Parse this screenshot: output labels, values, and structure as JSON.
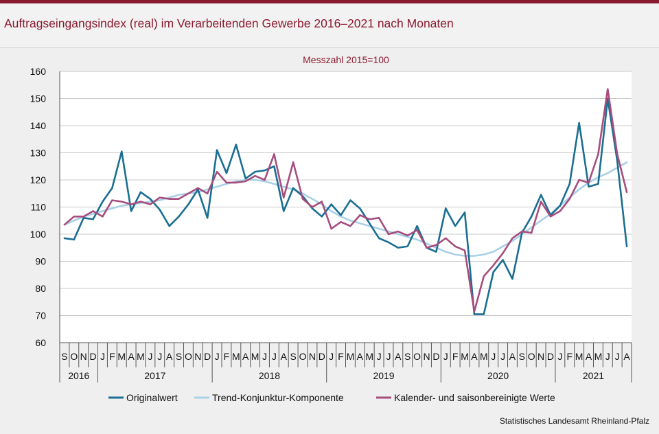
{
  "title": "Auftragseingangsindex (real) im Verarbeitenden Gewerbe 2016–2021 nach Monaten",
  "source": "Statistisches Landesamt  Rheinland-Pfalz",
  "colors": {
    "brand": "#8b1a2f",
    "original": "#1a6e91",
    "trend": "#a9d0e6",
    "seasonal": "#a64d7d"
  },
  "chart_data": {
    "type": "line",
    "subtitle": "Messzahl  2015=100",
    "ylim": [
      60,
      160
    ],
    "yticks": [
      60,
      70,
      80,
      90,
      100,
      110,
      120,
      130,
      140,
      150,
      160
    ],
    "month_labels": [
      "S",
      "O",
      "N",
      "D",
      "J",
      "F",
      "M",
      "A",
      "M",
      "J",
      "J",
      "A",
      "S",
      "O",
      "N",
      "D",
      "J",
      "F",
      "M",
      "A",
      "M",
      "J",
      "J",
      "A",
      "S",
      "O",
      "N",
      "D",
      "J",
      "F",
      "M",
      "A",
      "M",
      "J",
      "J",
      "A",
      "S",
      "O",
      "N",
      "D",
      "J",
      "F",
      "M",
      "A",
      "M",
      "J",
      "J",
      "A",
      "S",
      "O",
      "N",
      "D",
      "J",
      "F",
      "M",
      "A",
      "M",
      "J",
      "J",
      "A"
    ],
    "years": [
      {
        "label": "2016",
        "start": 0,
        "count": 4
      },
      {
        "label": "2017",
        "start": 4,
        "count": 12
      },
      {
        "label": "2018",
        "start": 16,
        "count": 12
      },
      {
        "label": "2019",
        "start": 28,
        "count": 12
      },
      {
        "label": "2020",
        "start": 40,
        "count": 12
      },
      {
        "label": "2021",
        "start": 52,
        "count": 8
      }
    ],
    "series": [
      {
        "name": "Originalwert",
        "values": [
          98.5,
          98,
          106,
          105.5,
          112,
          117,
          130.5,
          108.5,
          115.5,
          113,
          109,
          103,
          106.5,
          111,
          116.5,
          106,
          131,
          122.5,
          133,
          120.5,
          123,
          123.5,
          125,
          108.5,
          117,
          114,
          109.5,
          106.5,
          111,
          107,
          112.5,
          109.5,
          104,
          98.5,
          97,
          95,
          95.5,
          103,
          95,
          93.5,
          109.5,
          103,
          108,
          70.5,
          70.5,
          86,
          90.5,
          83.5,
          100.5,
          106.5,
          114.5,
          107,
          110.5,
          118.5,
          141,
          117.5,
          118.5,
          150,
          127,
          95.5
        ]
      },
      {
        "name": "Trend-Konjunktur-Komponente",
        "values": [
          103.5,
          105,
          106.5,
          107.5,
          108.5,
          109.5,
          110.5,
          111,
          111.5,
          112,
          112.5,
          113.5,
          114.5,
          115,
          115.5,
          116.5,
          117.5,
          118.5,
          119.5,
          120,
          120,
          119.5,
          118.5,
          117.5,
          116.5,
          115,
          113,
          111,
          108.5,
          106.5,
          105,
          104,
          103,
          102,
          101,
          100,
          99,
          98,
          96.5,
          95,
          93.5,
          92.5,
          92,
          92,
          92.5,
          93.5,
          95.5,
          97.5,
          100,
          102.5,
          105,
          107.5,
          110.5,
          113.5,
          116.5,
          119,
          121,
          122.5,
          124.5,
          126.5
        ]
      },
      {
        "name": "Kalender- und saisonbereinigte Werte",
        "values": [
          103.5,
          106.5,
          106.5,
          108.5,
          106.5,
          112.5,
          112,
          111,
          112,
          111,
          113.5,
          113,
          113,
          115,
          117,
          115,
          123,
          119,
          119,
          119.5,
          121.5,
          120,
          129.5,
          113.5,
          126.5,
          113,
          110,
          112,
          102,
          104.5,
          103,
          107,
          105.5,
          106,
          100,
          101,
          99.5,
          101.5,
          95,
          96,
          98.5,
          95.5,
          94,
          71.5,
          84.5,
          88.5,
          93,
          98.5,
          101,
          100.5,
          112,
          106.5,
          108.5,
          113,
          120,
          119,
          129.5,
          153.5,
          129.5,
          115.5
        ]
      }
    ]
  }
}
